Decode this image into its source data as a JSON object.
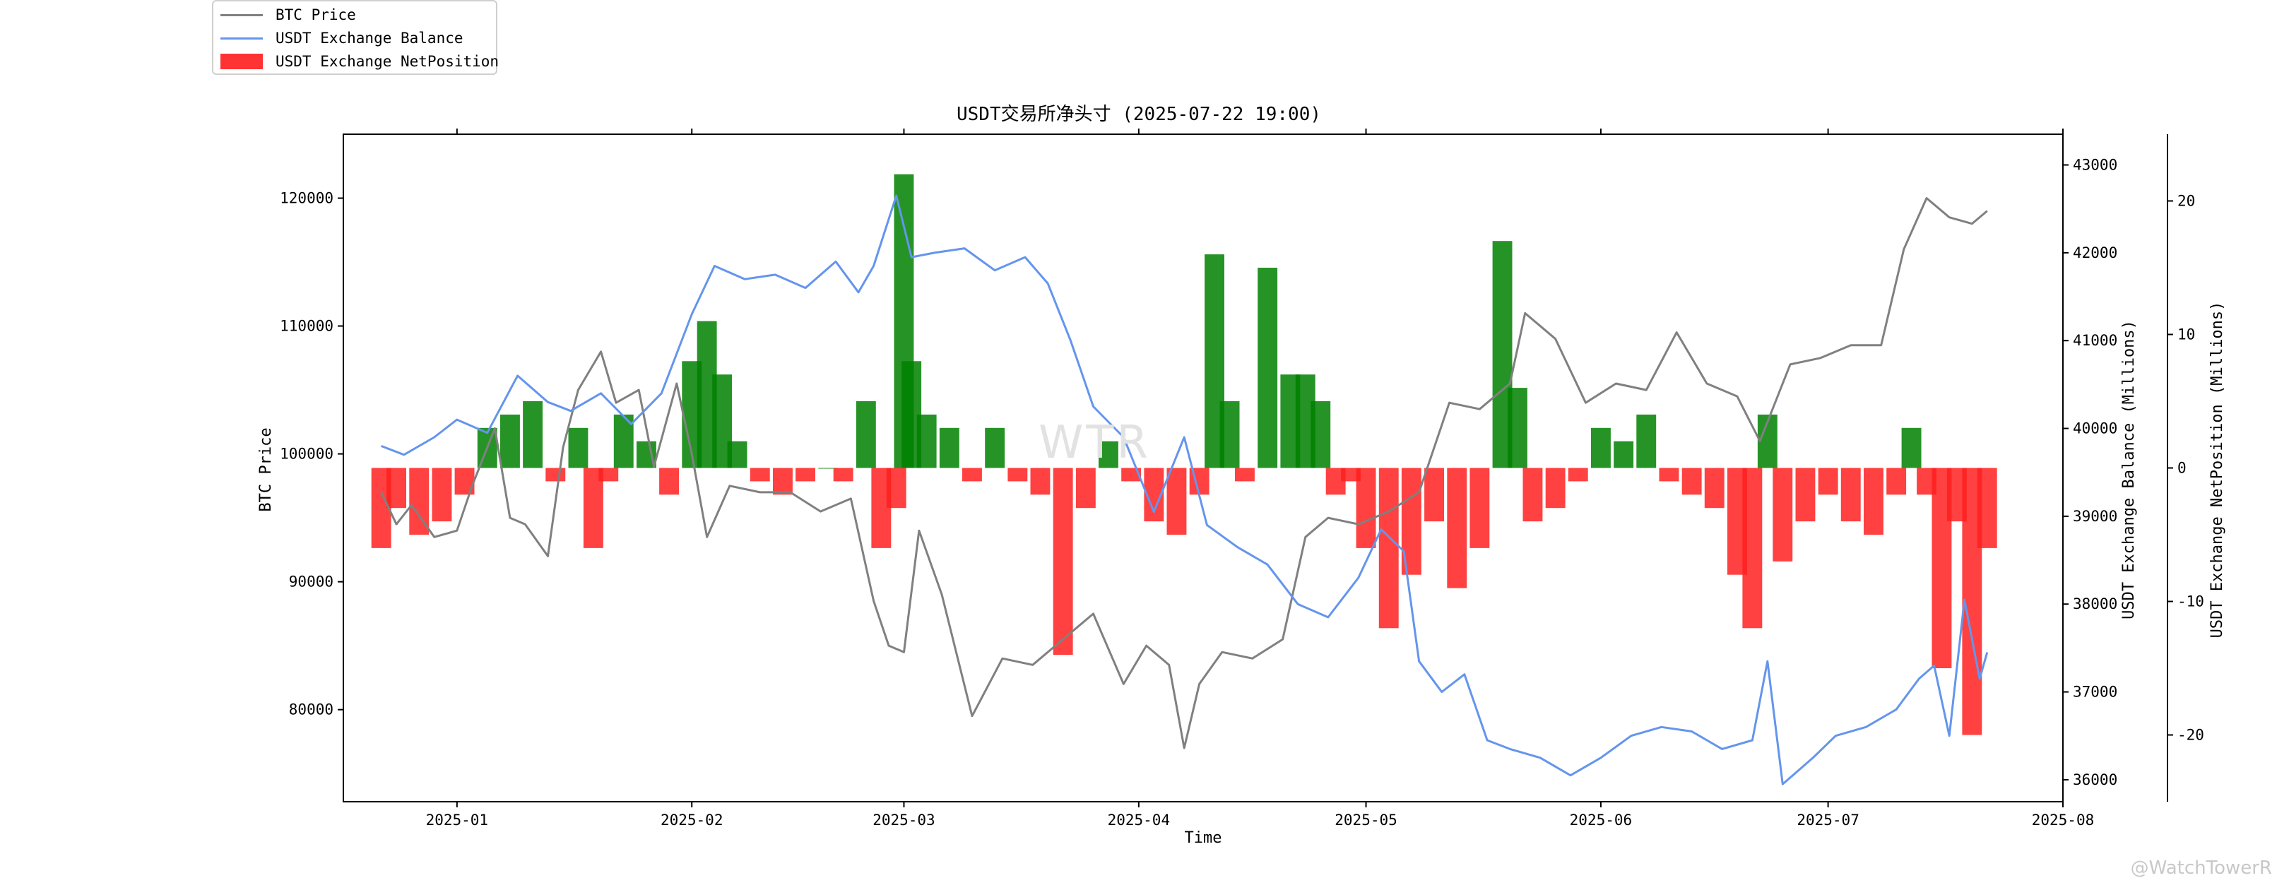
{
  "legend": {
    "items": [
      {
        "label": "BTC Price",
        "color": "#808080",
        "kind": "line"
      },
      {
        "label": "USDT Exchange Balance",
        "color": "#6495ed",
        "kind": "line"
      },
      {
        "label": "USDT Exchange NetPosition",
        "color": "#ff2b2b",
        "kind": "patch"
      }
    ]
  },
  "watermark": {
    "corner": "@WatchTowerR",
    "center": "WTR"
  },
  "chart_data": {
    "type": "line",
    "title": "USDT交易所净头寸 (2025-07-22 19:00)",
    "xlabel": "Time",
    "ylabel_left": "BTC Price",
    "ylabel_right1": "USDT Exchange Balance (Millions)",
    "ylabel_right2": "USDT Exchange NetPosition (Millions)",
    "x_range": [
      "2024-12-17",
      "2025-08-01"
    ],
    "x_ticks": [
      "2025-01",
      "2025-02",
      "2025-03",
      "2025-04",
      "2025-05",
      "2025-06",
      "2025-07",
      "2025-08"
    ],
    "y_left": {
      "range": [
        72800,
        125000
      ],
      "ticks": [
        80000,
        90000,
        100000,
        110000,
        120000
      ]
    },
    "y_right1": {
      "range": [
        35750,
        43350
      ],
      "ticks": [
        36000,
        37000,
        38000,
        39000,
        40000,
        41000,
        42000,
        43000
      ]
    },
    "y_right2": {
      "range": [
        -25,
        25
      ],
      "ticks": [
        -20,
        -10,
        0,
        10,
        20
      ]
    },
    "grid": false,
    "legend_position": "top-left",
    "series": [
      {
        "name": "BTC Price",
        "axis": "left",
        "color": "#808080",
        "x": [
          "2024-12-22",
          "2024-12-24",
          "2024-12-26",
          "2024-12-29",
          "2025-01-01",
          "2025-01-03",
          "2025-01-06",
          "2025-01-08",
          "2025-01-10",
          "2025-01-13",
          "2025-01-15",
          "2025-01-17",
          "2025-01-20",
          "2025-01-22",
          "2025-01-25",
          "2025-01-27",
          "2025-01-30",
          "2025-02-01",
          "2025-02-03",
          "2025-02-06",
          "2025-02-10",
          "2025-02-14",
          "2025-02-18",
          "2025-02-22",
          "2025-02-25",
          "2025-02-27",
          "2025-03-01",
          "2025-03-03",
          "2025-03-06",
          "2025-03-10",
          "2025-03-14",
          "2025-03-18",
          "2025-03-22",
          "2025-03-26",
          "2025-03-30",
          "2025-04-02",
          "2025-04-05",
          "2025-04-07",
          "2025-04-09",
          "2025-04-12",
          "2025-04-16",
          "2025-04-20",
          "2025-04-23",
          "2025-04-26",
          "2025-04-30",
          "2025-05-04",
          "2025-05-08",
          "2025-05-12",
          "2025-05-16",
          "2025-05-20",
          "2025-05-22",
          "2025-05-26",
          "2025-05-30",
          "2025-06-03",
          "2025-06-07",
          "2025-06-11",
          "2025-06-15",
          "2025-06-19",
          "2025-06-22",
          "2025-06-26",
          "2025-06-30",
          "2025-07-04",
          "2025-07-08",
          "2025-07-11",
          "2025-07-14",
          "2025-07-17",
          "2025-07-20",
          "2025-07-22"
        ],
        "values": [
          97000,
          94500,
          96000,
          93500,
          94000,
          97500,
          102000,
          95000,
          94500,
          92000,
          100500,
          105000,
          108000,
          104000,
          105000,
          99000,
          105500,
          100000,
          93500,
          97500,
          97000,
          97000,
          95500,
          96500,
          88500,
          85000,
          84500,
          94000,
          89000,
          79500,
          84000,
          83500,
          85500,
          87500,
          82000,
          85000,
          83500,
          77000,
          82000,
          84500,
          84000,
          85500,
          93500,
          95000,
          94500,
          95500,
          97000,
          104000,
          103500,
          105500,
          111000,
          109000,
          104000,
          105500,
          105000,
          109500,
          105500,
          104500,
          101000,
          107000,
          107500,
          108500,
          108500,
          116000,
          120000,
          118500,
          118000,
          119000
        ]
      },
      {
        "name": "USDT Exchange Balance",
        "axis": "right1",
        "color": "#6495ed",
        "x": [
          "2024-12-22",
          "2024-12-25",
          "2024-12-29",
          "2025-01-01",
          "2025-01-05",
          "2025-01-09",
          "2025-01-13",
          "2025-01-16",
          "2025-01-20",
          "2025-01-24",
          "2025-01-28",
          "2025-02-01",
          "2025-02-04",
          "2025-02-08",
          "2025-02-12",
          "2025-02-16",
          "2025-02-20",
          "2025-02-23",
          "2025-02-25",
          "2025-02-28",
          "2025-03-02",
          "2025-03-05",
          "2025-03-09",
          "2025-03-13",
          "2025-03-17",
          "2025-03-20",
          "2025-03-23",
          "2025-03-26",
          "2025-03-30",
          "2025-04-03",
          "2025-04-07",
          "2025-04-10",
          "2025-04-14",
          "2025-04-18",
          "2025-04-22",
          "2025-04-26",
          "2025-04-30",
          "2025-05-03",
          "2025-05-06",
          "2025-05-08",
          "2025-05-11",
          "2025-05-14",
          "2025-05-17",
          "2025-05-20",
          "2025-05-24",
          "2025-05-28",
          "2025-06-01",
          "2025-06-05",
          "2025-06-09",
          "2025-06-13",
          "2025-06-17",
          "2025-06-21",
          "2025-06-23",
          "2025-06-25",
          "2025-06-29",
          "2025-07-02",
          "2025-07-06",
          "2025-07-10",
          "2025-07-13",
          "2025-07-15",
          "2025-07-17",
          "2025-07-19",
          "2025-07-21",
          "2025-07-22"
        ],
        "values": [
          39800,
          39700,
          39900,
          40100,
          39950,
          40600,
          40300,
          40200,
          40400,
          40050,
          40400,
          41300,
          41850,
          41700,
          41750,
          41600,
          41900,
          41550,
          41850,
          42650,
          41950,
          42000,
          42050,
          41800,
          41950,
          41650,
          41000,
          40250,
          39900,
          39050,
          39900,
          38900,
          38650,
          38450,
          38000,
          37850,
          38300,
          38850,
          38600,
          37350,
          37000,
          37200,
          36450,
          36350,
          36250,
          36050,
          36250,
          36500,
          36600,
          36550,
          36350,
          36450,
          37350,
          35950,
          36250,
          36500,
          36600,
          36800,
          37150,
          37300,
          36500,
          38050,
          37150,
          37450
        ]
      }
    ],
    "bars": {
      "name": "USDT Exchange NetPosition",
      "axis": "right2",
      "positive_color": "#008000",
      "negative_color": "#ff2020",
      "x": [
        "2024-12-22",
        "2024-12-24",
        "2024-12-27",
        "2024-12-30",
        "2025-01-02",
        "2025-01-05",
        "2025-01-08",
        "2025-01-11",
        "2025-01-14",
        "2025-01-17",
        "2025-01-19",
        "2025-01-21",
        "2025-01-23",
        "2025-01-26",
        "2025-01-29",
        "2025-02-01",
        "2025-02-03",
        "2025-02-05",
        "2025-02-07",
        "2025-02-10",
        "2025-02-13",
        "2025-02-16",
        "2025-02-19",
        "2025-02-21",
        "2025-02-24",
        "2025-02-26",
        "2025-02-28",
        "2025-03-01",
        "2025-03-02",
        "2025-03-04",
        "2025-03-07",
        "2025-03-10",
        "2025-03-13",
        "2025-03-16",
        "2025-03-19",
        "2025-03-22",
        "2025-03-25",
        "2025-03-28",
        "2025-03-31",
        "2025-04-03",
        "2025-04-06",
        "2025-04-09",
        "2025-04-11",
        "2025-04-13",
        "2025-04-15",
        "2025-04-18",
        "2025-04-21",
        "2025-04-23",
        "2025-04-25",
        "2025-04-27",
        "2025-04-29",
        "2025-05-01",
        "2025-05-04",
        "2025-05-07",
        "2025-05-10",
        "2025-05-13",
        "2025-05-16",
        "2025-05-19",
        "2025-05-21",
        "2025-05-23",
        "2025-05-26",
        "2025-05-29",
        "2025-06-01",
        "2025-06-04",
        "2025-06-07",
        "2025-06-10",
        "2025-06-13",
        "2025-06-16",
        "2025-06-19",
        "2025-06-21",
        "2025-06-23",
        "2025-06-25",
        "2025-06-28",
        "2025-07-01",
        "2025-07-04",
        "2025-07-07",
        "2025-07-10",
        "2025-07-12",
        "2025-07-14",
        "2025-07-16",
        "2025-07-18",
        "2025-07-20",
        "2025-07-22"
      ],
      "values": [
        -6,
        -3,
        -5,
        -4,
        -2,
        3,
        4,
        5,
        -1,
        3,
        -6,
        -1,
        4,
        2,
        -2,
        8,
        11,
        7,
        2,
        -1,
        -2,
        -1,
        0,
        -1,
        5,
        -6,
        -3,
        22,
        8,
        4,
        3,
        -1,
        3,
        -1,
        -2,
        -14,
        -3,
        2,
        -1,
        -4,
        -5,
        -2,
        16,
        5,
        -1,
        15,
        7,
        7,
        5,
        -2,
        -1,
        -6,
        -12,
        -8,
        -4,
        -9,
        -6,
        17,
        6,
        -4,
        -3,
        -1,
        3,
        2,
        4,
        -1,
        -2,
        -3,
        -8,
        -12,
        4,
        -7,
        -4,
        -2,
        -4,
        -5,
        -2,
        3,
        -2,
        -15,
        -4,
        -20,
        -6
      ]
    }
  }
}
